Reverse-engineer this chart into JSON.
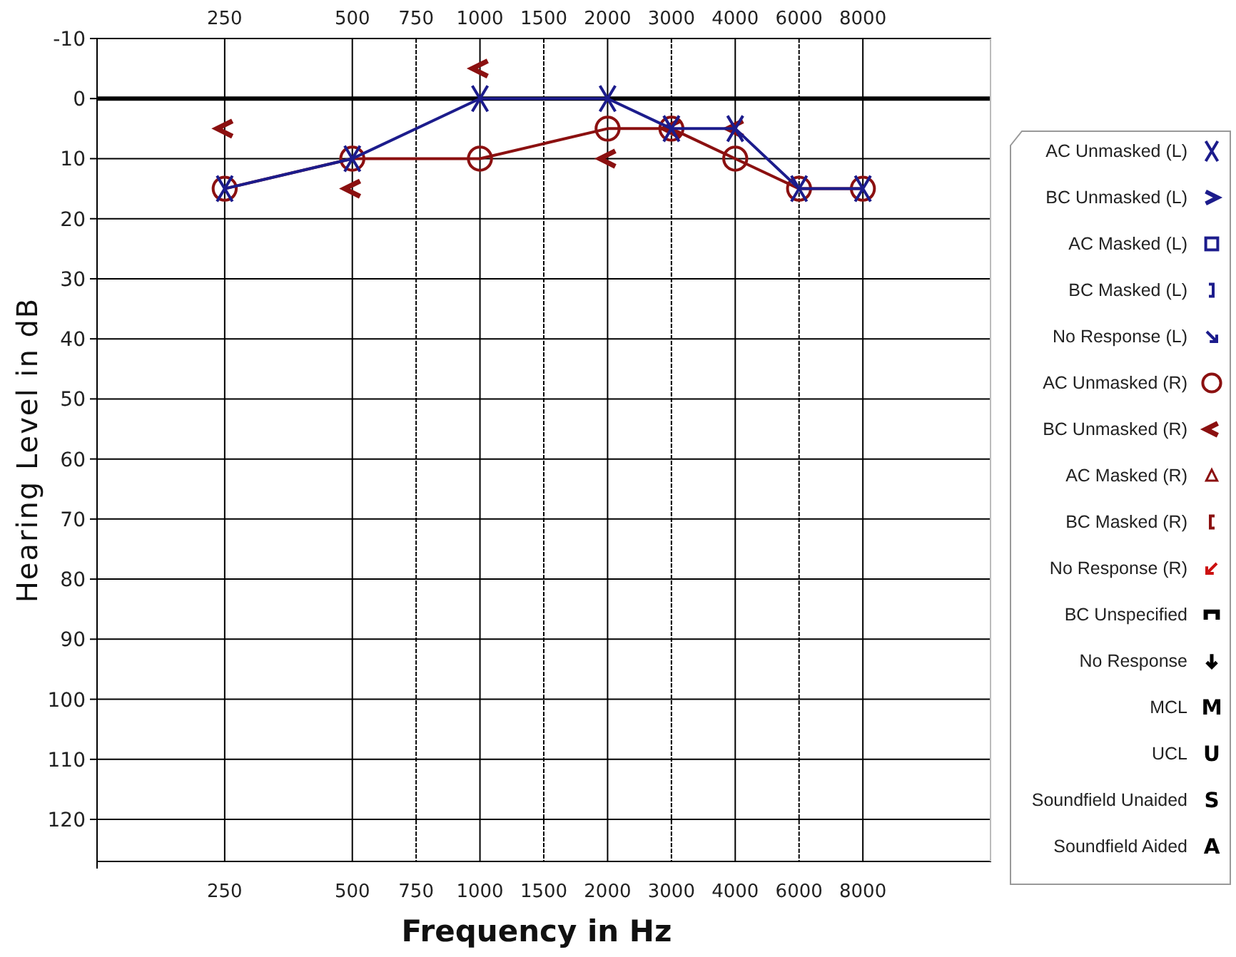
{
  "chart_data": {
    "type": "line",
    "xlabel": "Frequency in Hz",
    "ylabel": "Hearing Level in dB",
    "categories": [
      null,
      null,
      "250",
      null,
      "500",
      "750",
      "1000",
      "1500",
      "2000",
      "3000",
      "4000",
      "6000",
      "8000",
      null,
      null
    ],
    "ylim": [
      127,
      -10
    ],
    "yticks": [
      -10,
      0,
      10,
      20,
      30,
      40,
      50,
      60,
      70,
      80,
      90,
      100,
      110,
      120
    ],
    "grid": true,
    "legend": "right",
    "ref_lines": [
      {
        "axis": "y",
        "value": 0,
        "color": "#000000"
      }
    ],
    "annotations": [
      "M",
      "U",
      "S",
      "A"
    ],
    "series": [
      {
        "name": "AC Unmasked (L)",
        "color": "#1c1c8c",
        "marker": "cross",
        "values": [
          null,
          null,
          15,
          null,
          10,
          null,
          0,
          null,
          0,
          5,
          5,
          15,
          15,
          null,
          null
        ]
      },
      {
        "name": "BC Unmasked (L)",
        "color": "#1c1c8c",
        "values": [
          null,
          null,
          null,
          null,
          null,
          null,
          null,
          null,
          null,
          null,
          null,
          null,
          null,
          null,
          null
        ]
      },
      {
        "name": "AC Masked (L)",
        "color": "#1c1c8c",
        "marker": "square",
        "values": [
          null,
          null,
          null,
          null,
          null,
          null,
          null,
          null,
          null,
          null,
          null,
          null,
          null,
          null,
          null
        ]
      },
      {
        "name": "BC Masked (L)",
        "color": "#1c1c8c",
        "values": [
          null,
          null,
          null,
          null,
          null,
          null,
          null,
          null,
          null,
          null,
          null,
          null,
          null,
          null,
          null
        ]
      },
      {
        "name": "No Response (L)",
        "color": "#1c1c8c",
        "values": [
          null,
          null,
          null,
          null,
          null,
          null,
          null,
          null,
          null,
          null,
          null,
          null,
          null,
          null,
          null
        ]
      },
      {
        "name": "AC Unmasked (R)",
        "color": "#8b1010",
        "marker": "circle",
        "values": [
          null,
          null,
          15,
          null,
          10,
          null,
          10,
          null,
          5,
          5,
          10,
          15,
          15,
          null,
          null
        ]
      },
      {
        "name": "BC Unmasked (R)",
        "type": "scatter",
        "color": "#8b1010",
        "values": [
          null,
          null,
          5,
          null,
          15,
          null,
          -5,
          null,
          10,
          5,
          5,
          null,
          null,
          null,
          null
        ]
      },
      {
        "name": "AC Masked (R)",
        "color": "#8b1010",
        "marker": "triangle",
        "values": [
          null,
          null,
          null,
          null,
          null,
          null,
          null,
          null,
          null,
          null,
          null,
          null,
          null,
          null,
          null
        ]
      },
      {
        "name": "BC Masked (R)",
        "color": "#8b1010",
        "values": [
          null,
          null,
          null,
          null,
          null,
          null,
          null,
          null,
          null,
          null,
          null,
          null,
          null,
          null,
          null
        ]
      },
      {
        "name": "No Response (R)",
        "color": "#cc1010",
        "values": [
          null,
          null,
          null,
          null,
          null,
          null,
          null,
          null,
          null,
          null,
          null,
          null,
          null,
          null,
          null
        ]
      },
      {
        "name": "BC Unspecified",
        "color": "#000000",
        "values": [
          null,
          null,
          null,
          null,
          null,
          null,
          null,
          null,
          null,
          null,
          null,
          null,
          null,
          null,
          null
        ]
      },
      {
        "name": "No Response",
        "color": "#000000",
        "values": [
          null,
          null,
          null,
          null,
          null,
          null,
          null,
          null,
          null,
          null,
          null,
          null,
          null,
          null,
          null
        ]
      },
      {
        "name": "MCL",
        "color": "#000000",
        "values": [
          null,
          null,
          null,
          null,
          null,
          null,
          null,
          null,
          null,
          null,
          null,
          null,
          null,
          null,
          null
        ]
      },
      {
        "name": "UCL",
        "color": "#000000",
        "values": [
          null,
          null,
          null,
          null,
          null,
          null,
          null,
          null,
          null,
          null,
          null,
          null,
          null,
          null,
          null
        ]
      },
      {
        "name": "Soundfield Unaided",
        "color": "#000000",
        "values": [
          null,
          null,
          null,
          null,
          null,
          null,
          null,
          null,
          null,
          null,
          null,
          null,
          null,
          null,
          null
        ]
      },
      {
        "name": "Soundfield Aided",
        "color": "#000000",
        "values": [
          null,
          null,
          null,
          null,
          null,
          null,
          null,
          null,
          null,
          null,
          null,
          null,
          null,
          null,
          null
        ]
      }
    ]
  }
}
